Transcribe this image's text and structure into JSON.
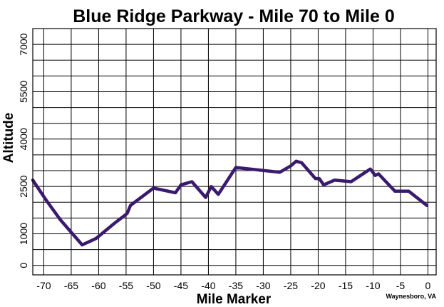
{
  "chart_data": {
    "type": "line",
    "title": "Blue Ridge Parkway - Mile 70 to Mile 0",
    "xlabel": "Mile Marker",
    "ylabel": "Altitude",
    "footnote": "Waynesboro, VA",
    "xlim": [
      -72,
      1.5
    ],
    "ylim": [
      -300,
      7500
    ],
    "x_ticks": [
      -70,
      -65,
      -60,
      -55,
      -50,
      -45,
      -40,
      -35,
      -30,
      -25,
      -20,
      -15,
      -10,
      -5,
      0
    ],
    "x_tick_labels": [
      "-70",
      "-65",
      "-60",
      "-55",
      "-50",
      "-45",
      "-40",
      "-35",
      "-30",
      "-25",
      "-20",
      "-15",
      "-10",
      "-5",
      "0"
    ],
    "y_ticks": [
      0,
      1000,
      2500,
      4000,
      5500,
      7000
    ],
    "y_tick_labels": [
      "0",
      "1000",
      "2500",
      "4000",
      "5500",
      "7000"
    ],
    "grid": true,
    "line_color": "#3a1a6e",
    "series": [
      {
        "x": [
          -72,
          -69.5,
          -67,
          -63,
          -60.5,
          -57,
          -55.5,
          -54.8,
          -54.2,
          -50,
          -46,
          -45,
          -43,
          -40.5,
          -39.5,
          -38.2,
          -35,
          -27,
          -25,
          -24,
          -23,
          -20.5,
          -19.8,
          -19,
          -17,
          -14,
          -10.5,
          -9.6,
          -9,
          -6,
          -3.5,
          -0.2
        ],
        "y": [
          2700,
          2050,
          1450,
          650,
          850,
          1350,
          1550,
          1650,
          1900,
          2450,
          2300,
          2550,
          2650,
          2150,
          2500,
          2250,
          3100,
          2950,
          3150,
          3300,
          3250,
          2750,
          2750,
          2550,
          2700,
          2650,
          3050,
          2850,
          2900,
          2350,
          2350,
          1900
        ]
      }
    ]
  }
}
